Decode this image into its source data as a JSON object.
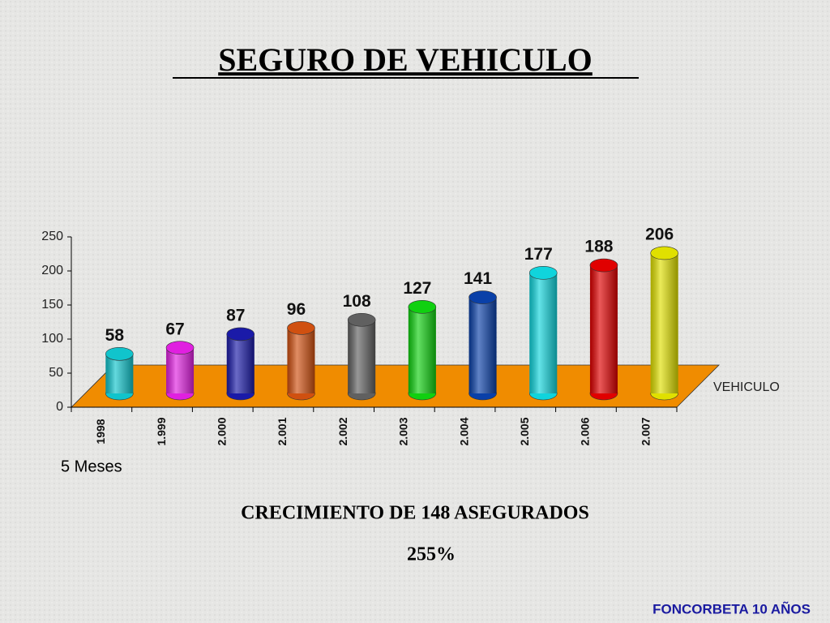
{
  "title": "SEGURO DE VEHICULO",
  "chart_data": {
    "type": "bar",
    "categories": [
      "1998",
      "1.999",
      "2.000",
      "2.001",
      "2.002",
      "2.003",
      "2.004",
      "2.005",
      "2.006",
      "2.007"
    ],
    "series": [
      {
        "name": "VEHICULO",
        "values": [
          58,
          67,
          87,
          96,
          108,
          127,
          141,
          177,
          188,
          206
        ],
        "colors": [
          "#10c4cc",
          "#e020e0",
          "#1a1aa8",
          "#d05010",
          "#606060",
          "#10d010",
          "#0a40a8",
          "#10d4dc",
          "#e00000",
          "#e0e000"
        ]
      }
    ],
    "ylim": [
      0,
      250
    ],
    "yticks": [
      0,
      50,
      100,
      150,
      200,
      250
    ],
    "annotation": "5 Meses"
  },
  "caption": "CRECIMIENTO DE 148 ASEGURADOS",
  "percentage": "255%",
  "footer": "FONCORBETA 10 AÑOS"
}
